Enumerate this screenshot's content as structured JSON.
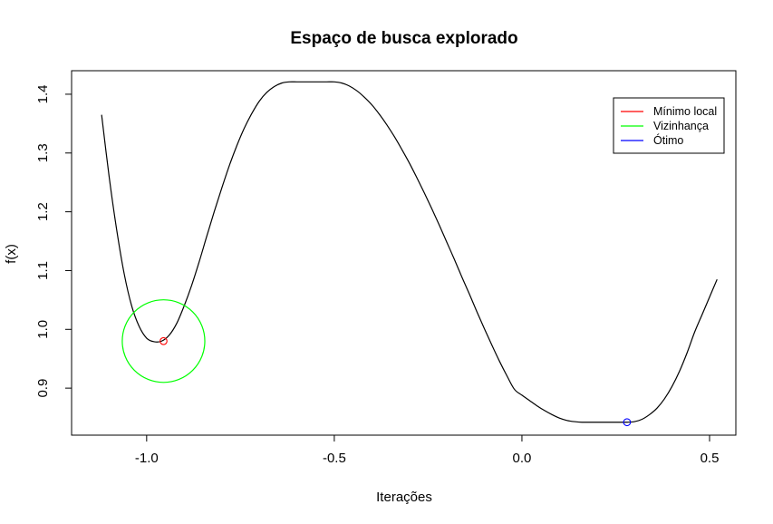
{
  "chart_data": {
    "type": "line",
    "title": "Espaço de busca explorado",
    "xlabel": "Iterações",
    "ylabel": "f(x)",
    "xlim": [
      -1.2,
      0.57
    ],
    "ylim": [
      0.82,
      1.44
    ],
    "x_ticks": [
      {
        "value": -1.0,
        "label": "-1.0"
      },
      {
        "value": -0.5,
        "label": "-0.5"
      },
      {
        "value": 0.0,
        "label": "0.0"
      },
      {
        "value": 0.5,
        "label": "0.5"
      }
    ],
    "y_ticks": [
      {
        "value": 0.9,
        "label": "0.9"
      },
      {
        "value": 1.0,
        "label": "1.0"
      },
      {
        "value": 1.1,
        "label": "1.1"
      },
      {
        "value": 1.2,
        "label": "1.2"
      },
      {
        "value": 1.3,
        "label": "1.3"
      },
      {
        "value": 1.4,
        "label": "1.4"
      }
    ],
    "curve": {
      "color": "#000000",
      "x": [
        -1.12,
        -1.1,
        -1.08,
        -1.06,
        -1.04,
        -1.02,
        -1.0,
        -0.98,
        -0.96,
        -0.94,
        -0.92,
        -0.9,
        -0.88,
        -0.86,
        -0.84,
        -0.82,
        -0.8,
        -0.78,
        -0.76,
        -0.74,
        -0.72,
        -0.7,
        -0.68,
        -0.66,
        -0.64,
        -0.62,
        -0.6,
        -0.58,
        -0.56,
        -0.54,
        -0.52,
        -0.5,
        -0.48,
        -0.46,
        -0.44,
        -0.42,
        -0.4,
        -0.38,
        -0.36,
        -0.34,
        -0.32,
        -0.3,
        -0.28,
        -0.26,
        -0.24,
        -0.22,
        -0.2,
        -0.18,
        -0.16,
        -0.14,
        -0.12,
        -0.1,
        -0.08,
        -0.06,
        -0.04,
        -0.02,
        0.0,
        0.02,
        0.04,
        0.06,
        0.08,
        0.1,
        0.12,
        0.14,
        0.16,
        0.18,
        0.2,
        0.22,
        0.24,
        0.26,
        0.28,
        0.3,
        0.32,
        0.34,
        0.36,
        0.38,
        0.4,
        0.42,
        0.44,
        0.46,
        0.48,
        0.5,
        0.52
      ],
      "y": [
        1.365,
        1.26,
        1.17,
        1.095,
        1.04,
        1.005,
        0.985,
        0.979,
        0.98,
        0.99,
        1.01,
        1.04,
        1.075,
        1.115,
        1.158,
        1.2,
        1.24,
        1.278,
        1.312,
        1.342,
        1.367,
        1.388,
        1.403,
        1.413,
        1.419,
        1.421,
        1.421,
        1.421,
        1.421,
        1.421,
        1.421,
        1.421,
        1.419,
        1.414,
        1.406,
        1.395,
        1.382,
        1.366,
        1.348,
        1.328,
        1.306,
        1.283,
        1.258,
        1.232,
        1.205,
        1.177,
        1.148,
        1.119,
        1.089,
        1.06,
        1.03,
        1.001,
        0.973,
        0.946,
        0.921,
        0.898,
        0.888,
        0.879,
        0.87,
        0.862,
        0.855,
        0.849,
        0.845,
        0.843,
        0.842,
        0.842,
        0.842,
        0.842,
        0.842,
        0.842,
        0.842,
        0.843,
        0.847,
        0.855,
        0.866,
        0.882,
        0.903,
        0.929,
        0.96,
        0.995,
        1.025,
        1.055,
        1.085
      ]
    },
    "markers": [
      {
        "name": "Mínimo local",
        "x": -0.955,
        "y": 0.98,
        "color": "#ff0000"
      },
      {
        "name": "Ótimo",
        "x": 0.28,
        "y": 0.842,
        "color": "#0000ff"
      }
    ],
    "neighborhood": {
      "x": -0.955,
      "y": 0.98,
      "radius_x": 0.11,
      "color": "#00ff00"
    },
    "legend": {
      "position": "top-right",
      "entries": [
        {
          "label": "Mínimo local",
          "color": "#ff0000"
        },
        {
          "label": "Vizinhança",
          "color": "#00ff00"
        },
        {
          "label": "Ótimo",
          "color": "#0000ff"
        }
      ]
    }
  }
}
